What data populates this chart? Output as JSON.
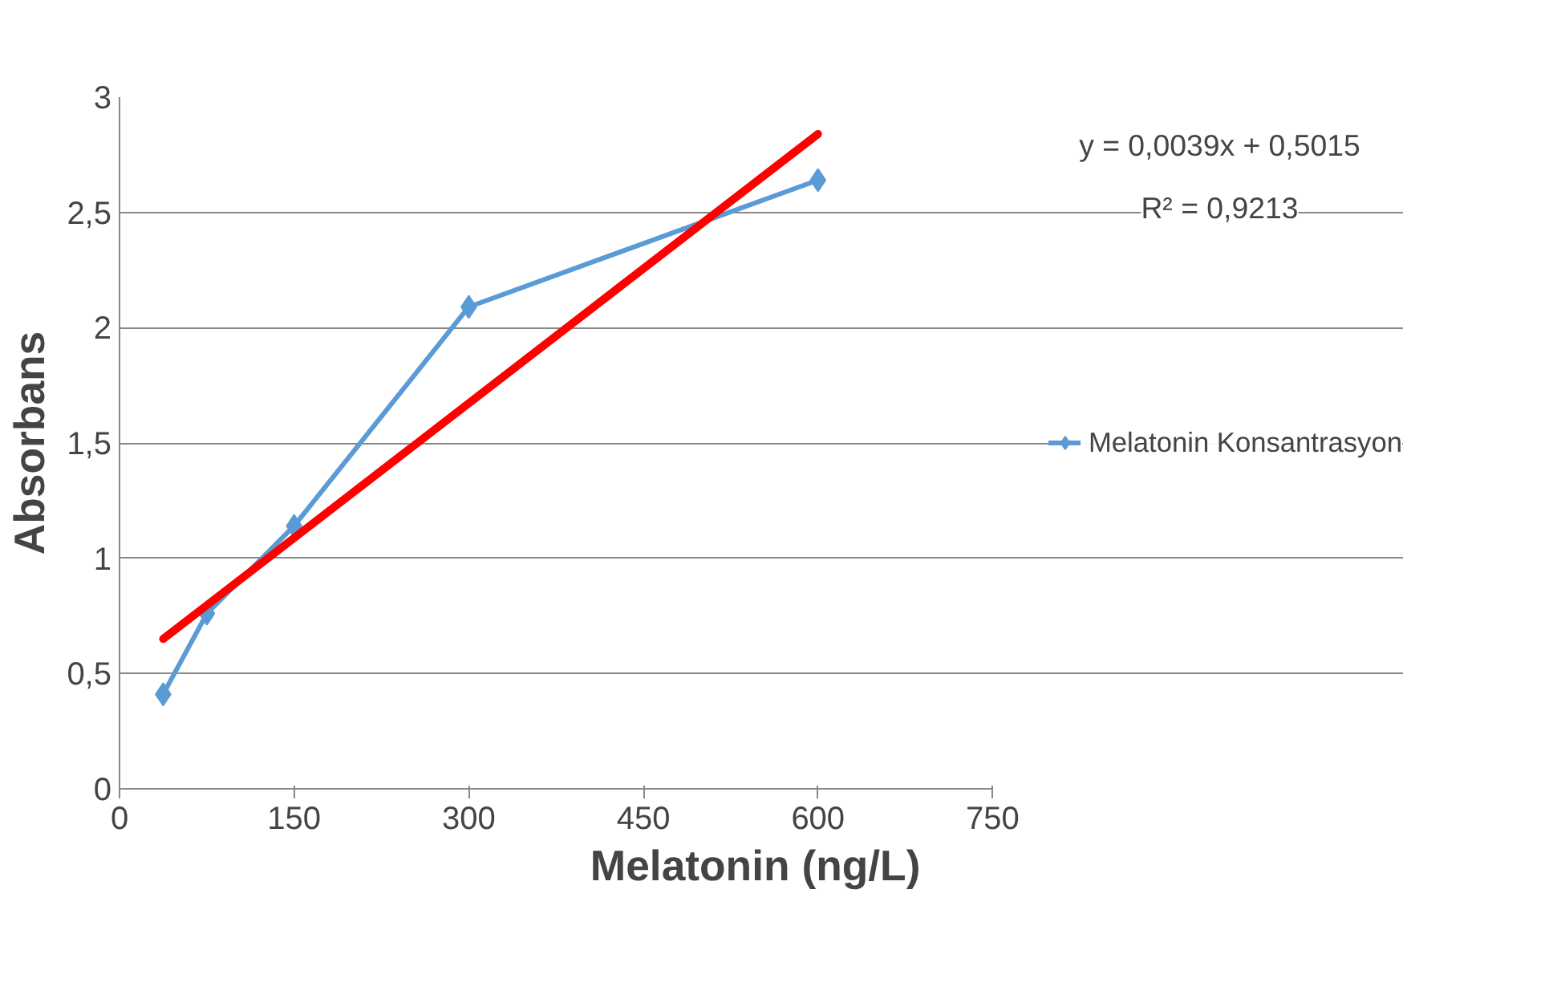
{
  "chart_data": {
    "type": "line",
    "xlabel": "Melatonin  (ng/L)",
    "ylabel": "Absorbans",
    "x": [
      37.5,
      75,
      150,
      300,
      600
    ],
    "series": [
      {
        "name": "Melatonin Konsantrasyon",
        "color": "#5b9bd5",
        "values": [
          0.41,
          0.76,
          1.14,
          2.09,
          2.64
        ],
        "marker": "diamond"
      },
      {
        "type": "line",
        "color": "#ff0000",
        "x": [
          37.5,
          600
        ],
        "values": [
          0.65,
          2.84
        ],
        "marker": "none"
      }
    ],
    "annotations": [
      "y = 0,0039x + 0,5015",
      "R² = 0,9213"
    ],
    "xlim": [
      0,
      750
    ],
    "xticks": [
      0,
      150,
      300,
      450,
      600,
      750
    ],
    "ylim": [
      0,
      3
    ],
    "yticks": [
      0,
      {
        "value": 0.5,
        "label": "0,5"
      },
      1,
      {
        "value": 1.5,
        "label": "1,5"
      },
      2,
      {
        "value": 2.5,
        "label": "2,5"
      },
      3
    ],
    "grid": "y",
    "legend": "right"
  }
}
